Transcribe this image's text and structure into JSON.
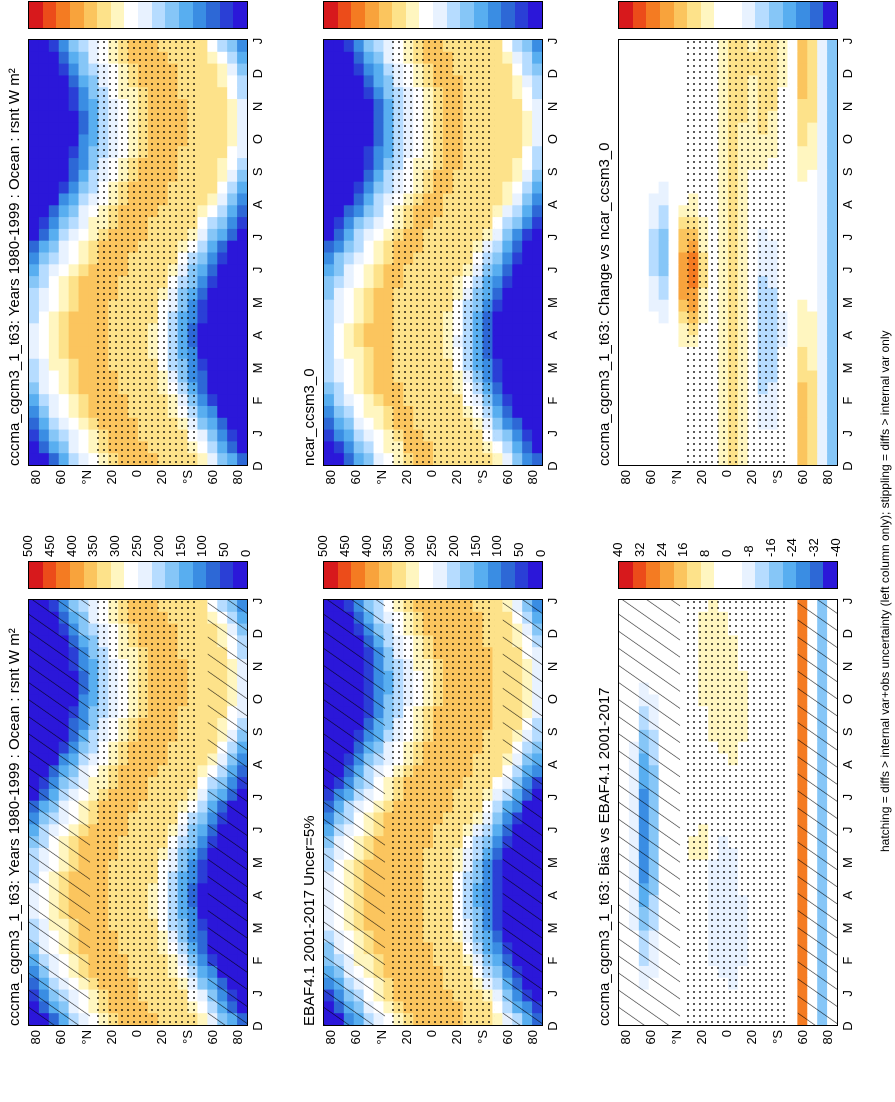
{
  "figure": {
    "footnote": "hatching = diffs > internal var+obs uncertainty (left column only); stippling = diffs > internal var only"
  },
  "scales": {
    "abs": {
      "labels": [
        "500",
        "450",
        "400",
        "350",
        "300",
        "250",
        "200",
        "150",
        "100",
        "50",
        "0"
      ],
      "colors": [
        "#d7191c",
        "#ec4c1a",
        "#f47b22",
        "#f8a33c",
        "#fbc55e",
        "#fde28a",
        "#fff6c0",
        "#ffffff",
        "#e8f2ff",
        "#b6dcff",
        "#86c6f7",
        "#58aef0",
        "#3a8de3",
        "#2d68d6",
        "#2a3fd6",
        "#2b17d9"
      ]
    },
    "diff": {
      "labels": [
        "40",
        "32",
        "24",
        "16",
        "8",
        "0",
        "-8",
        "-16",
        "-24",
        "-32",
        "-40"
      ],
      "colors": [
        "#d7191c",
        "#ec4c1a",
        "#f47b22",
        "#f8a33c",
        "#fbc55e",
        "#fde28a",
        "#fff6c0",
        "#ffffff",
        "#ffffff",
        "#e8f2ff",
        "#b6dcff",
        "#86c6f7",
        "#58aef0",
        "#3a8de3",
        "#2d68d6",
        "#2b17d9"
      ]
    }
  },
  "chart_data": [
    {
      "id": "p1",
      "type": "heatmap",
      "title": "cccma_cgcm3_1_t63: Years 1980-1999 : Ocean : rsnt W m²",
      "kind": "abs",
      "hatch": true,
      "stipple": true,
      "xlabel": "",
      "ylabel": "",
      "x_ticks": [
        "D",
        "J",
        "F",
        "M",
        "A",
        "M",
        "J",
        "J",
        "A",
        "S",
        "O",
        "N",
        "D",
        "J"
      ],
      "y_ticks": [
        "80",
        "60",
        "°N",
        "20",
        "0",
        "20",
        "°S",
        "60",
        "80"
      ],
      "ylim": [
        -90,
        90
      ],
      "colorbar_ticks": "abs"
    },
    {
      "id": "p2",
      "type": "heatmap",
      "title": "cccma_cgcm3_1_t63: Years 1980-1999 : Ocean : rsnt W m²",
      "kind": "abs",
      "hatch": false,
      "stipple": true,
      "xlabel": "",
      "ylabel": "",
      "x_ticks": [
        "D",
        "J",
        "F",
        "M",
        "A",
        "M",
        "J",
        "J",
        "A",
        "S",
        "O",
        "N",
        "D",
        "J"
      ],
      "y_ticks": [
        "80",
        "60",
        "°N",
        "20",
        "0",
        "20",
        "°S",
        "60",
        "80"
      ],
      "ylim": [
        -90,
        90
      ],
      "colorbar_ticks": "abs"
    },
    {
      "id": "p3",
      "type": "heatmap",
      "title": "EBAF4.1 2001-2017 Uncer=5%",
      "kind": "abs",
      "hatch": true,
      "stipple": true,
      "xlabel": "",
      "ylabel": "",
      "x_ticks": [
        "D",
        "J",
        "F",
        "M",
        "A",
        "M",
        "J",
        "J",
        "A",
        "S",
        "O",
        "N",
        "D",
        "J"
      ],
      "y_ticks": [
        "80",
        "60",
        "°N",
        "20",
        "0",
        "20",
        "°S",
        "60",
        "80"
      ],
      "ylim": [
        -90,
        90
      ],
      "colorbar_ticks": "abs"
    },
    {
      "id": "p4",
      "type": "heatmap",
      "title": "ncar_ccsm3_0",
      "kind": "abs",
      "hatch": false,
      "stipple": true,
      "xlabel": "",
      "ylabel": "",
      "x_ticks": [
        "D",
        "J",
        "F",
        "M",
        "A",
        "M",
        "J",
        "J",
        "A",
        "S",
        "O",
        "N",
        "D",
        "J"
      ],
      "y_ticks": [
        "80",
        "60",
        "°N",
        "20",
        "0",
        "20",
        "°S",
        "60",
        "80"
      ],
      "ylim": [
        -90,
        90
      ],
      "colorbar_ticks": "abs"
    },
    {
      "id": "p5",
      "type": "heatmap",
      "title": "cccma_cgcm3_1_t63: Bias vs EBAF4.1 2001-2017",
      "kind": "bias",
      "hatch": true,
      "stipple": true,
      "xlabel": "",
      "ylabel": "",
      "x_ticks": [
        "D",
        "J",
        "F",
        "M",
        "A",
        "M",
        "J",
        "J",
        "A",
        "S",
        "O",
        "N",
        "D",
        "J"
      ],
      "y_ticks": [
        "80",
        "60",
        "°N",
        "20",
        "0",
        "20",
        "°S",
        "60",
        "80"
      ],
      "ylim": [
        -90,
        90
      ],
      "colorbar_ticks": "diff"
    },
    {
      "id": "p6",
      "type": "heatmap",
      "title": "cccma_cgcm3_1_t63: Change vs ncar_ccsm3_0",
      "kind": "change",
      "hatch": false,
      "stipple": true,
      "xlabel": "",
      "ylabel": "",
      "x_ticks": [
        "D",
        "J",
        "F",
        "M",
        "A",
        "M",
        "J",
        "J",
        "A",
        "S",
        "O",
        "N",
        "D",
        "J"
      ],
      "y_ticks": [
        "80",
        "60",
        "°N",
        "20",
        "0",
        "20",
        "°S",
        "60",
        "80"
      ],
      "ylim": [
        -90,
        90
      ],
      "colorbar_ticks": "diff"
    }
  ]
}
